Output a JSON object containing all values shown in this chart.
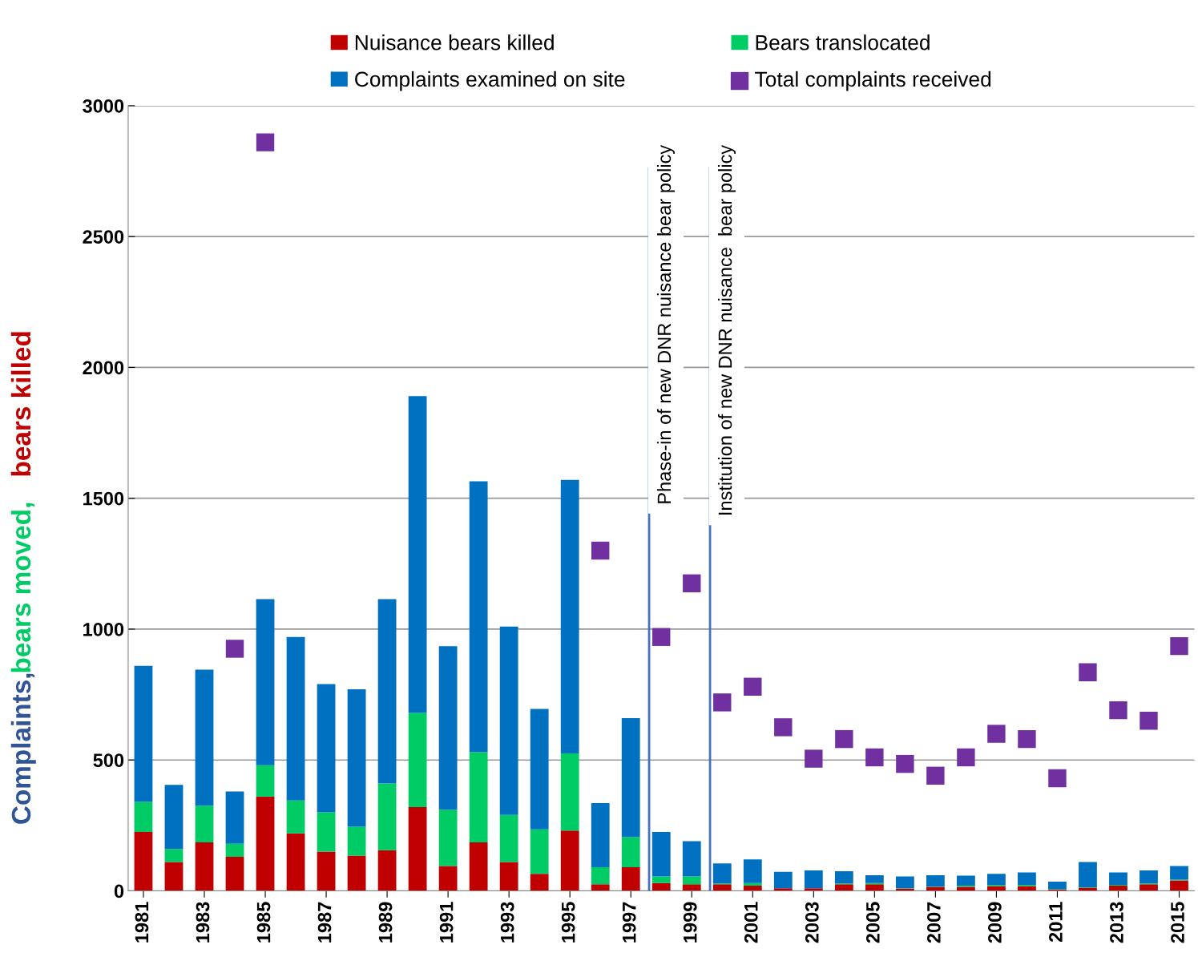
{
  "chart_data": {
    "type": "bar",
    "stacked": true,
    "ylabel": "Complaints, bears moved, bears killed",
    "x": [
      1981,
      1982,
      1983,
      1984,
      1985,
      1986,
      1987,
      1988,
      1989,
      1990,
      1991,
      1992,
      1993,
      1994,
      1995,
      1996,
      1997,
      1998,
      1999,
      2000,
      2001,
      2002,
      2003,
      2004,
      2005,
      2006,
      2007,
      2008,
      2009,
      2010,
      2011,
      2012,
      2013,
      2014,
      2015
    ],
    "xlim": [
      1980.5,
      2015.5
    ],
    "xticks": [
      1981,
      1983,
      1985,
      1987,
      1989,
      1991,
      1993,
      1995,
      1997,
      1999,
      2001,
      2003,
      2005,
      2007,
      2009,
      2011,
      2013,
      2015
    ],
    "ylim": [
      0,
      3000
    ],
    "yticks": [
      0,
      500,
      1000,
      1500,
      2000,
      2500,
      3000
    ],
    "grid": "y",
    "legend": "top",
    "series": [
      {
        "name": "Nuisance bears killed",
        "color": "#c00000",
        "values": [
          225,
          110,
          185,
          130,
          360,
          220,
          150,
          135,
          155,
          320,
          95,
          185,
          110,
          65,
          230,
          25,
          90,
          30,
          25,
          25,
          20,
          10,
          10,
          25,
          25,
          8,
          15,
          15,
          18,
          18,
          5,
          12,
          20,
          25,
          40
        ]
      },
      {
        "name": "Bears translocated",
        "color": "#00cc66",
        "values": [
          115,
          50,
          140,
          50,
          120,
          125,
          150,
          110,
          255,
          360,
          215,
          345,
          180,
          170,
          295,
          65,
          115,
          25,
          30,
          3,
          10,
          null,
          null,
          3,
          5,
          2,
          2,
          5,
          5,
          5,
          2,
          2,
          3,
          3,
          3
        ]
      },
      {
        "name": "Complaints examined on site",
        "color": "#0070c0",
        "values": [
          520,
          245,
          520,
          200,
          635,
          625,
          490,
          525,
          705,
          1210,
          625,
          1035,
          720,
          460,
          1045,
          245,
          455,
          170,
          135,
          77,
          90,
          63,
          68,
          47,
          30,
          45,
          43,
          38,
          42,
          47,
          28,
          96,
          47,
          50,
          52
        ]
      },
      {
        "name": "Total complaints received",
        "type": "scatter",
        "marker": "square",
        "color": "#7030a0",
        "values": [
          null,
          null,
          null,
          925,
          2860,
          null,
          null,
          null,
          null,
          null,
          null,
          null,
          null,
          null,
          null,
          1300,
          null,
          970,
          1175,
          720,
          780,
          625,
          505,
          580,
          510,
          485,
          440,
          510,
          600,
          580,
          430,
          835,
          690,
          650,
          935
        ]
      }
    ],
    "ref_lines": [
      {
        "axis": "x",
        "value": 1997.6,
        "label": "Phase-in of new DNR nuisance bear policy",
        "color": "#4472c4"
      },
      {
        "axis": "x",
        "value": 1999.6,
        "label": "Institution of new DNR nuisance  bear policy",
        "color": "#4472c4"
      }
    ]
  }
}
